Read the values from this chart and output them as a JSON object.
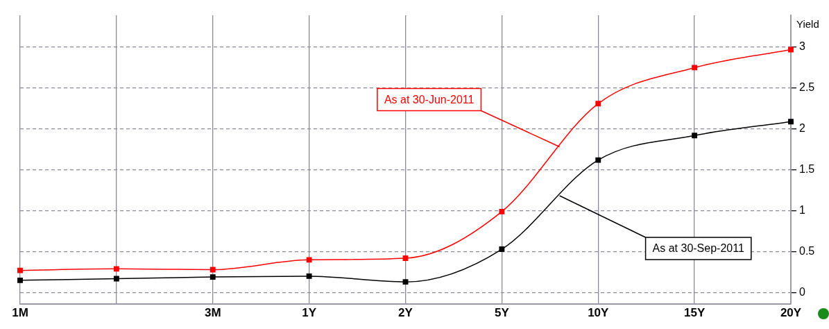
{
  "chart_data": {
    "type": "line",
    "ylabel": "Yield",
    "categories": [
      "1M",
      null,
      "3M",
      "1Y",
      "2Y",
      "5Y",
      "10Y",
      "15Y",
      "20Y"
    ],
    "series": [
      {
        "name": "As at 30-Jun-2011",
        "color": "#ff0000",
        "values": [
          0.27,
          0.29,
          0.28,
          0.4,
          0.42,
          0.99,
          2.31,
          2.75,
          2.97
        ]
      },
      {
        "name": "As at 30-Sep-2011",
        "color": "#000000",
        "values": [
          0.15,
          0.17,
          0.19,
          0.2,
          0.13,
          0.53,
          1.62,
          1.92,
          2.09
        ]
      }
    ],
    "ylim": [
      -0.14,
      3.39
    ],
    "yticks": [
      0,
      0.5,
      1,
      1.5,
      2,
      2.5,
      3
    ],
    "grid": true,
    "legend": false,
    "marker": "square",
    "line_style": "solid"
  }
}
